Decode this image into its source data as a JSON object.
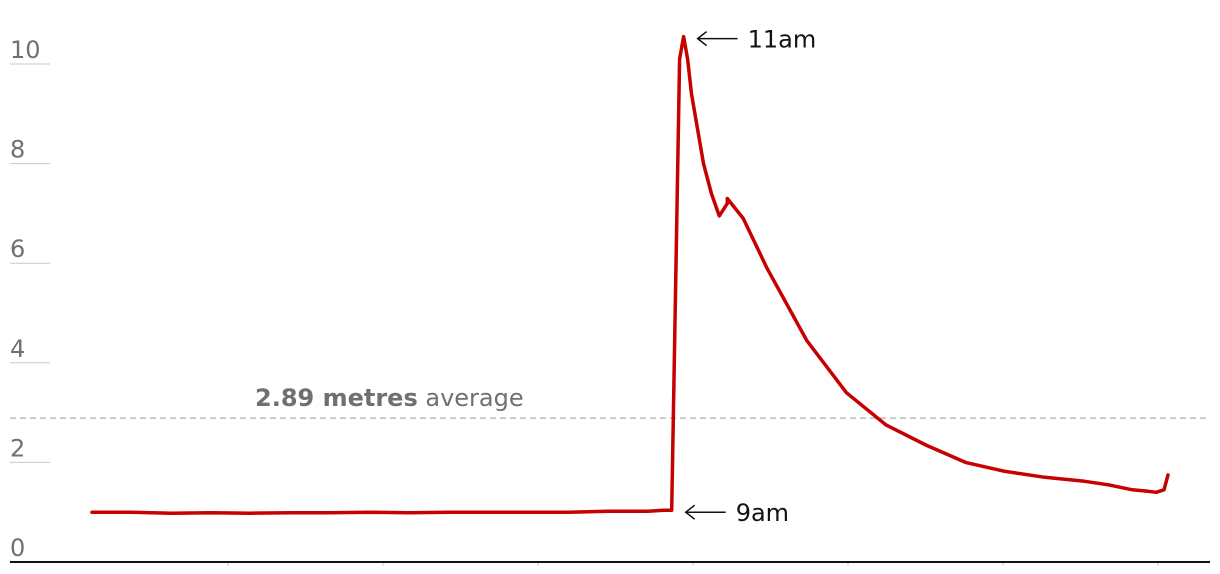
{
  "chart_data": {
    "type": "line",
    "title": "",
    "xlabel": "",
    "ylabel": "",
    "ylim": [
      0,
      10
    ],
    "y_ticks": [
      "0",
      "2",
      "4",
      "6",
      "8",
      "10"
    ],
    "grid": false,
    "legend": "none",
    "series": [
      {
        "color": "#c70000",
        "points": [
          [
            0,
            1.0
          ],
          [
            0.05,
            1.0
          ],
          [
            0.1,
            0.98
          ],
          [
            0.15,
            0.99
          ],
          [
            0.2,
            0.98
          ],
          [
            0.25,
            0.99
          ],
          [
            0.3,
            0.99
          ],
          [
            0.35,
            1.0
          ],
          [
            0.4,
            0.99
          ],
          [
            0.45,
            1.0
          ],
          [
            0.5,
            1.0
          ],
          [
            0.55,
            1.0
          ],
          [
            0.6,
            1.0
          ],
          [
            0.65,
            1.02
          ],
          [
            0.7,
            1.02
          ],
          [
            0.72,
            1.04
          ],
          [
            0.73,
            1.04
          ],
          [
            0.74,
            10.1
          ],
          [
            0.745,
            10.55
          ],
          [
            0.75,
            10.1
          ],
          [
            0.755,
            9.4
          ],
          [
            0.77,
            8.0
          ],
          [
            0.78,
            7.4
          ],
          [
            0.79,
            6.95
          ],
          [
            0.8,
            7.2
          ],
          [
            0.8,
            7.3
          ],
          [
            0.82,
            6.9
          ],
          [
            0.85,
            5.9
          ],
          [
            0.9,
            4.45
          ],
          [
            0.95,
            3.4
          ],
          [
            1.0,
            2.75
          ],
          [
            1.05,
            2.35
          ],
          [
            1.1,
            2.0
          ],
          [
            1.15,
            1.82
          ],
          [
            1.2,
            1.7
          ],
          [
            1.25,
            1.62
          ],
          [
            1.28,
            1.55
          ],
          [
            1.31,
            1.45
          ],
          [
            1.33,
            1.42
          ],
          [
            1.34,
            1.4
          ],
          [
            1.35,
            1.45
          ],
          [
            1.355,
            1.75
          ]
        ]
      }
    ],
    "average": {
      "value": 2.89,
      "label_value": "2.89 metres",
      "label_suffix": " average",
      "color": "#bdbdbd"
    },
    "annotations": [
      {
        "text": "11am",
        "x": 0.745,
        "y": 10.55,
        "arrow": "left"
      },
      {
        "text": "9am",
        "x": 0.73,
        "y": 1.04,
        "arrow": "left"
      }
    ]
  }
}
